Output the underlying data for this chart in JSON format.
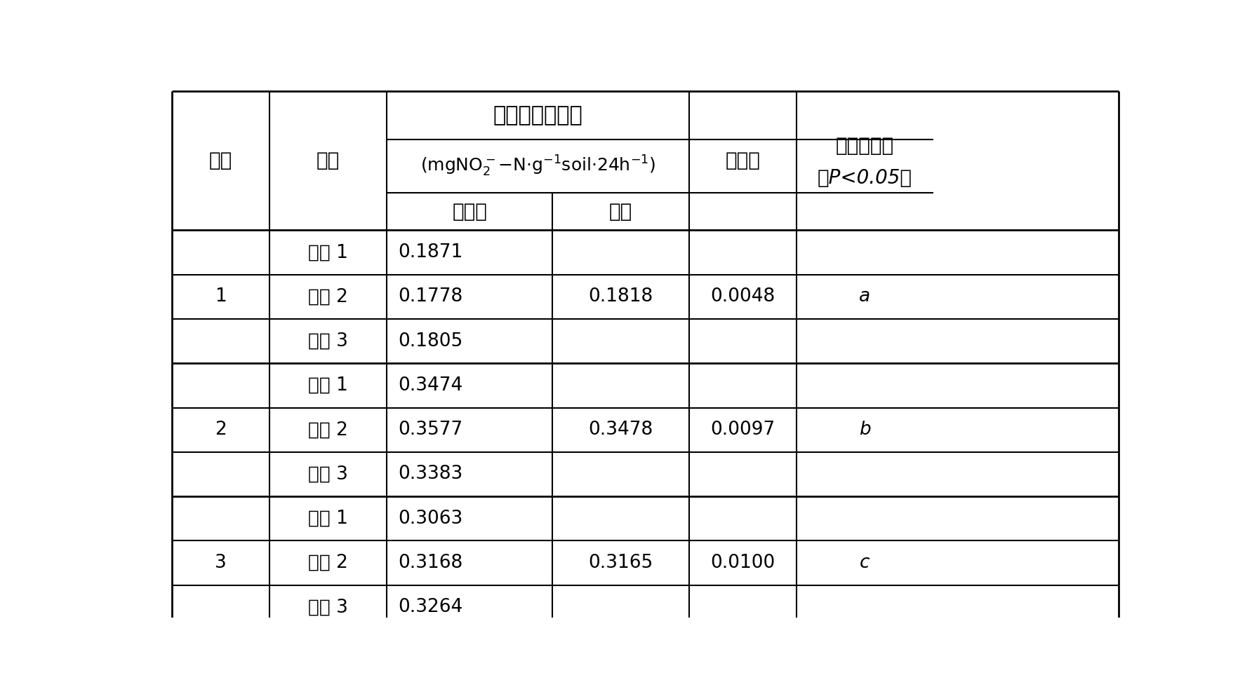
{
  "groups": [
    {
      "treatment": "1",
      "reps": [
        "重复 1",
        "重复 2",
        "重复 3"
      ],
      "measured": [
        "0.1871",
        "0.1778",
        "0.1805"
      ],
      "mean": "0.1818",
      "std": "0.0048",
      "sig": "a"
    },
    {
      "treatment": "2",
      "reps": [
        "重复 1",
        "重复 2",
        "重复 3"
      ],
      "measured": [
        "0.3474",
        "0.3577",
        "0.3383"
      ],
      "mean": "0.3478",
      "std": "0.0097",
      "sig": "b"
    },
    {
      "treatment": "3",
      "reps": [
        "重复 1",
        "重复 2",
        "重复 3"
      ],
      "measured": [
        "0.3063",
        "0.3168",
        "0.3264"
      ],
      "mean": "0.3165",
      "std": "0.0100",
      "sig": "c"
    }
  ],
  "header_title": "确酸还原酶活性",
  "col_chuli": "处理",
  "col_chongfu": "重复",
  "col_ceding": "测定値",
  "col_junzhi": "均値",
  "col_biaozhuncha": "标准差",
  "col_chayi1": "差异显著性",
  "col_chayi2": "（P<0.05）",
  "bg_color": "#ffffff",
  "text_color": "#000000",
  "line_color": "#000000",
  "font_size_title": 22,
  "font_size_header": 20,
  "font_size_unit": 18,
  "font_size_body": 19
}
